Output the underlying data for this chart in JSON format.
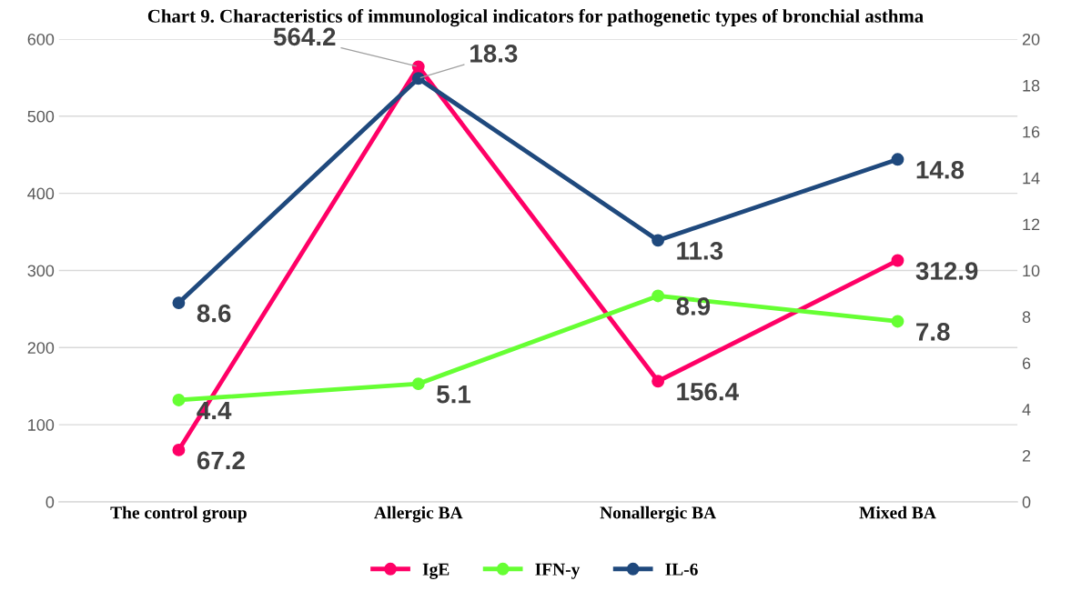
{
  "chart_data": {
    "type": "line",
    "title": "Chart 9. Characteristics of immunological indicators for pathogenetic types of bronchial asthma",
    "categories": [
      "The control group",
      "Allergic BA",
      "Nonallergic BA",
      "Mixed BA"
    ],
    "series": [
      {
        "name": "IgE",
        "color": "#ff0066",
        "values": [
          67.2,
          564.2,
          156.4,
          312.9
        ]
      },
      {
        "name": "IFN-y",
        "color": "#66ff33",
        "values": [
          4.4,
          5.1,
          8.9,
          7.8
        ],
        "axis": "y2"
      },
      {
        "name": "IL-6",
        "color": "#1f497d",
        "values": [
          8.6,
          18.3,
          11.3,
          14.8
        ],
        "axis": "y2"
      }
    ],
    "ylim": [
      0,
      600
    ],
    "yticks": [
      0,
      100,
      200,
      300,
      400,
      500,
      600
    ],
    "y2lim": [
      0,
      20
    ],
    "y2ticks": [
      0,
      2,
      4,
      6,
      8,
      10,
      12,
      14,
      16,
      18,
      20
    ],
    "grid": "y",
    "legend": "bottom",
    "marker": "circle",
    "line_style": "solid",
    "data_labels": true
  }
}
